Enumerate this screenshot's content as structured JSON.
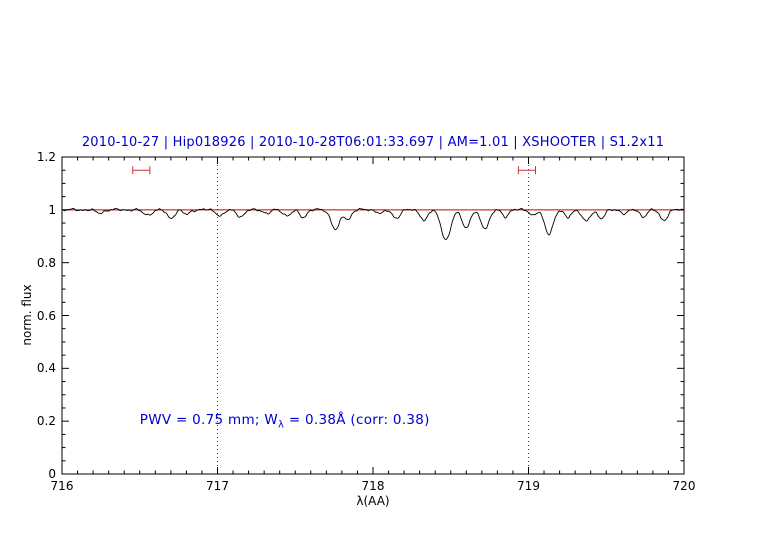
{
  "chart_data": {
    "type": "line",
    "title": "2010-10-27 | Hip018926 | 2010-10-28T06:01:33.697 | AM=1.01 | XSHOOTER | S1.2x11",
    "title_color": "#0000cc",
    "xlabel": "λ(AA)",
    "ylabel": "norm. flux",
    "xlim": [
      716,
      720
    ],
    "ylim": [
      0,
      1.2
    ],
    "x_ticks": [
      716,
      717,
      718,
      719,
      720
    ],
    "x_tick_labels": [
      "716",
      "717",
      "718",
      "719",
      "720"
    ],
    "y_ticks": [
      0,
      0.2,
      0.4,
      0.6,
      0.8,
      1,
      1.2
    ],
    "y_tick_labels": [
      "0",
      "0.2",
      "0.4",
      "0.6",
      "0.8",
      "1",
      "1.2"
    ],
    "x_minor_step": 0.1,
    "y_minor_step": 0.05,
    "grid": false,
    "legend": false,
    "spectrum_color": "#000000",
    "continuum": {
      "level": 1.0,
      "color": "#cc0000"
    },
    "reference_vlines": {
      "x": [
        717,
        719
      ],
      "style": "dotted",
      "color": "#444444"
    },
    "band_markers": {
      "color": "#cc3333",
      "y": 1.15,
      "items": [
        {
          "center": 716.51,
          "half_width": 0.055
        },
        {
          "center": 718.99,
          "half_width": 0.055
        }
      ]
    },
    "annotation": {
      "color": "#0000cc",
      "parts": [
        "PWV  =  0.75  mm;  W",
        "λ",
        "  =  0.38Å  (corr: 0.38)"
      ],
      "x": 716.5,
      "y": 0.2
    },
    "absorption_lines": [
      [
        716.24,
        0.012,
        0.025
      ],
      [
        716.55,
        0.018,
        0.03
      ],
      [
        716.7,
        0.03,
        0.025
      ],
      [
        716.8,
        0.018,
        0.02
      ],
      [
        717.02,
        0.022,
        0.025
      ],
      [
        717.15,
        0.025,
        0.025
      ],
      [
        717.32,
        0.015,
        0.02
      ],
      [
        717.45,
        0.022,
        0.025
      ],
      [
        717.55,
        0.028,
        0.022
      ],
      [
        717.76,
        0.075,
        0.028
      ],
      [
        717.84,
        0.035,
        0.02
      ],
      [
        718.05,
        0.015,
        0.02
      ],
      [
        718.15,
        0.03,
        0.025
      ],
      [
        718.33,
        0.042,
        0.022
      ],
      [
        718.47,
        0.115,
        0.03
      ],
      [
        718.6,
        0.068,
        0.025
      ],
      [
        718.72,
        0.068,
        0.028
      ],
      [
        718.85,
        0.025,
        0.02
      ],
      [
        719.03,
        0.02,
        0.02
      ],
      [
        719.13,
        0.09,
        0.028
      ],
      [
        719.25,
        0.03,
        0.02
      ],
      [
        719.37,
        0.045,
        0.025
      ],
      [
        719.47,
        0.032,
        0.022
      ],
      [
        719.62,
        0.015,
        0.02
      ],
      [
        719.74,
        0.025,
        0.022
      ],
      [
        719.87,
        0.038,
        0.025
      ]
    ]
  }
}
